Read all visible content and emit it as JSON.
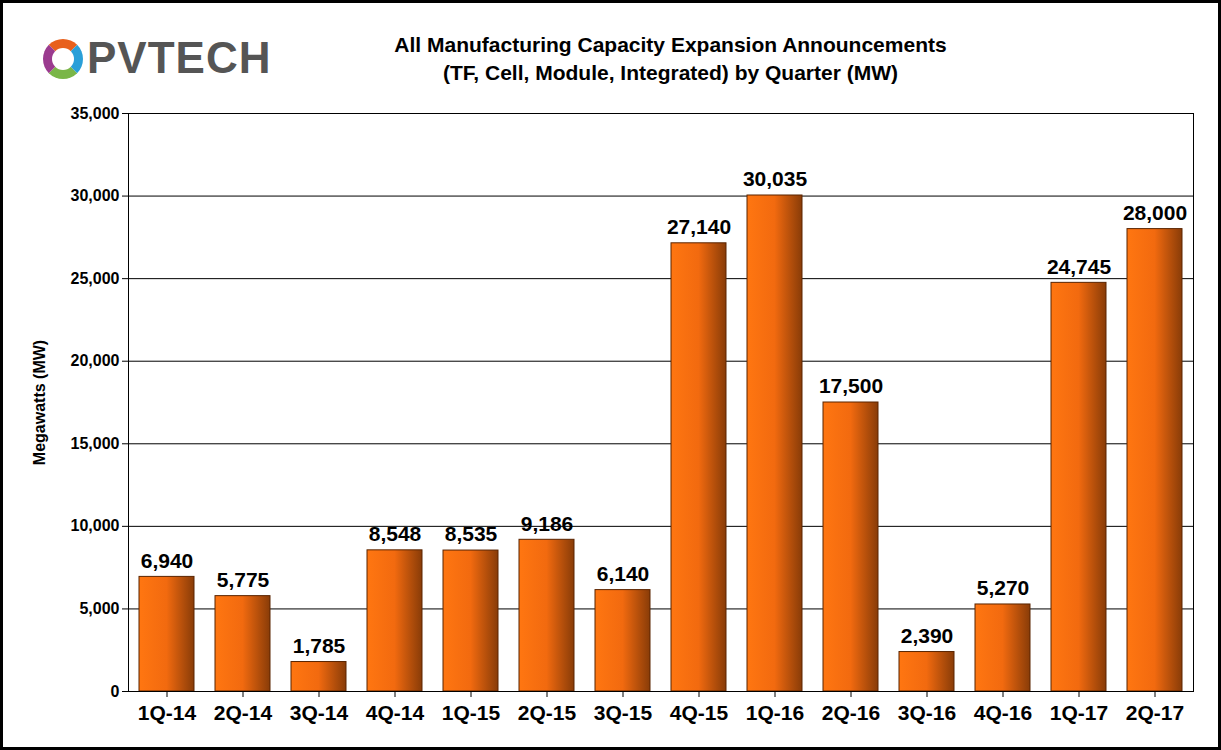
{
  "chart_data": {
    "type": "bar",
    "title": "All Manufacturing Capacity Expansion Announcements",
    "subtitle": "(TF, Cell, Module, Integrated) by Quarter (MW)",
    "annotations": [
      "PVTECH"
    ],
    "y_label": "Megawatts (MW)",
    "categories": [
      "1Q-14",
      "2Q-14",
      "3Q-14",
      "4Q-14",
      "1Q-15",
      "2Q-15",
      "3Q-15",
      "4Q-15",
      "1Q-16",
      "2Q-16",
      "3Q-16",
      "4Q-16",
      "1Q-17",
      "2Q-17"
    ],
    "values": [
      6940,
      5775,
      1785,
      8548,
      8535,
      9186,
      6140,
      27140,
      30035,
      17500,
      2390,
      5270,
      24745,
      28000
    ],
    "value_labels": [
      "6,940",
      "5,775",
      "1,785",
      "8,548",
      "8,535",
      "9,186",
      "6,140",
      "27,140",
      "30,035",
      "17,500",
      "2,390",
      "5,270",
      "24,745",
      "28,000"
    ],
    "color": "#f26a0f",
    "ylim": [
      0,
      35000
    ],
    "yticks": [
      0,
      {
        "value": 5000,
        "label": "5,000"
      },
      {
        "value": 10000,
        "label": "10,000"
      },
      {
        "value": 15000,
        "label": "15,000"
      },
      {
        "value": 20000,
        "label": "20,000"
      },
      {
        "value": 25000,
        "label": "25,000"
      },
      {
        "value": 30000,
        "label": "30,000"
      },
      {
        "value": 35000,
        "label": "35,000"
      }
    ],
    "grid": true,
    "data_labels": true
  }
}
